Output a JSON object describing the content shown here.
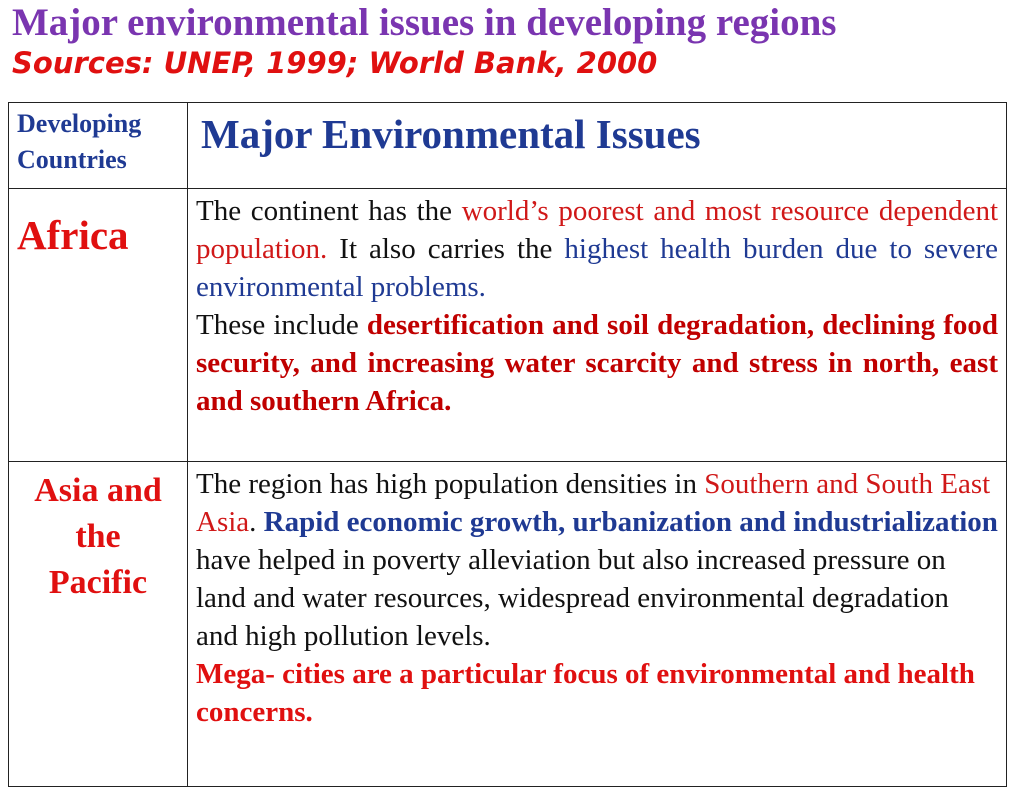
{
  "header": {
    "title": "Major environmental issues in developing regions",
    "subtitle": "Sources: UNEP, 1999; World Bank, 2000"
  },
  "table": {
    "col1_header_line1": "Developing",
    "col1_header_line2": "Countries",
    "col2_header": "Major Environmental Issues",
    "rows": [
      {
        "region": "Africa",
        "para1": {
          "s1": "The continent has the ",
          "s2": "world’s poorest and most resource dependent population.",
          "s3": " It also carries the ",
          "s4": "highest health burden due to severe environmental problems."
        },
        "para2": {
          "s1": "These include ",
          "s2": "desertification and soil degradation, declining food security, and increasing water scarcity and stress in north, east and southern Africa."
        }
      },
      {
        "region_line1": "Asia and",
        "region_line2": "the",
        "region_line3": "Pacific",
        "para1": {
          "s1": "The region has high population densities in ",
          "s2": "Southern and South East Asia",
          "s3": ". ",
          "s4": "Rapid economic growth, urbanization and industrialization",
          "s5": " have helped in poverty alleviation but also increased pressure on land and water resources, widespread environmental degradation and high pollution levels."
        },
        "para2": {
          "s1": "Mega- cities are a particular focus of environmental and health concerns."
        }
      }
    ]
  }
}
